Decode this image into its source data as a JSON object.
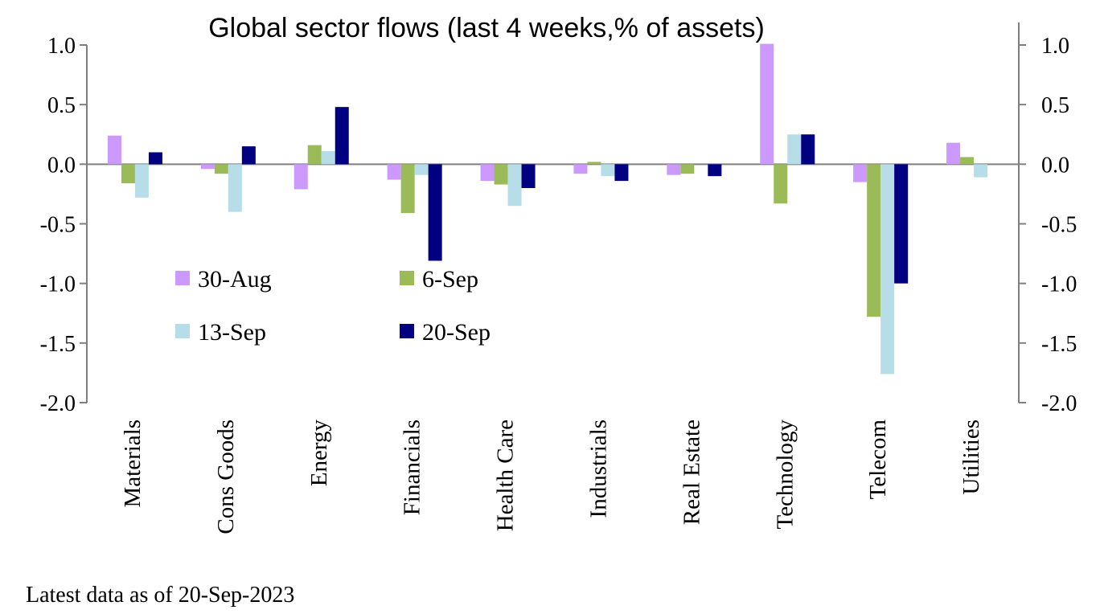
{
  "chart_data": {
    "type": "bar",
    "title": "Global sector flows (last 4 weeks,% of assets)",
    "footnote": "Latest data as of 20-Sep-2023",
    "xlabel": "",
    "ylabel": "",
    "ylim": [
      -2.0,
      1.0
    ],
    "yticks": [
      "1.0",
      "0.5",
      "0.0",
      "-0.5",
      "-1.0",
      "-1.5",
      "-2.0"
    ],
    "ytick_values": [
      1.0,
      0.5,
      0.0,
      -0.5,
      -1.0,
      -1.5,
      -2.0
    ],
    "legend_position": "middle-left",
    "categories": [
      "Materials",
      "Cons Goods",
      "Energy",
      "Financials",
      "Health Care",
      "Industrials",
      "Real Estate",
      "Technology",
      "Telecom",
      "Utilities"
    ],
    "series": [
      {
        "name": "30-Aug",
        "color": "#CC99FF",
        "values": [
          0.24,
          -0.04,
          -0.21,
          -0.13,
          -0.14,
          -0.08,
          -0.09,
          1.01,
          -0.15,
          0.18
        ]
      },
      {
        "name": "6-Sep",
        "color": "#9BBB59",
        "values": [
          -0.16,
          -0.08,
          0.16,
          -0.41,
          -0.17,
          0.02,
          -0.08,
          -0.33,
          -1.28,
          0.06
        ]
      },
      {
        "name": "13-Sep",
        "color": "#B7DEE8",
        "values": [
          -0.28,
          -0.4,
          0.11,
          -0.09,
          -0.35,
          -0.1,
          0.0,
          0.25,
          -1.76,
          -0.11
        ]
      },
      {
        "name": "20-Sep",
        "color": "#000080",
        "values": [
          0.1,
          0.15,
          0.48,
          -0.81,
          -0.2,
          -0.14,
          -0.1,
          0.25,
          -1.0,
          0.0
        ]
      }
    ]
  }
}
